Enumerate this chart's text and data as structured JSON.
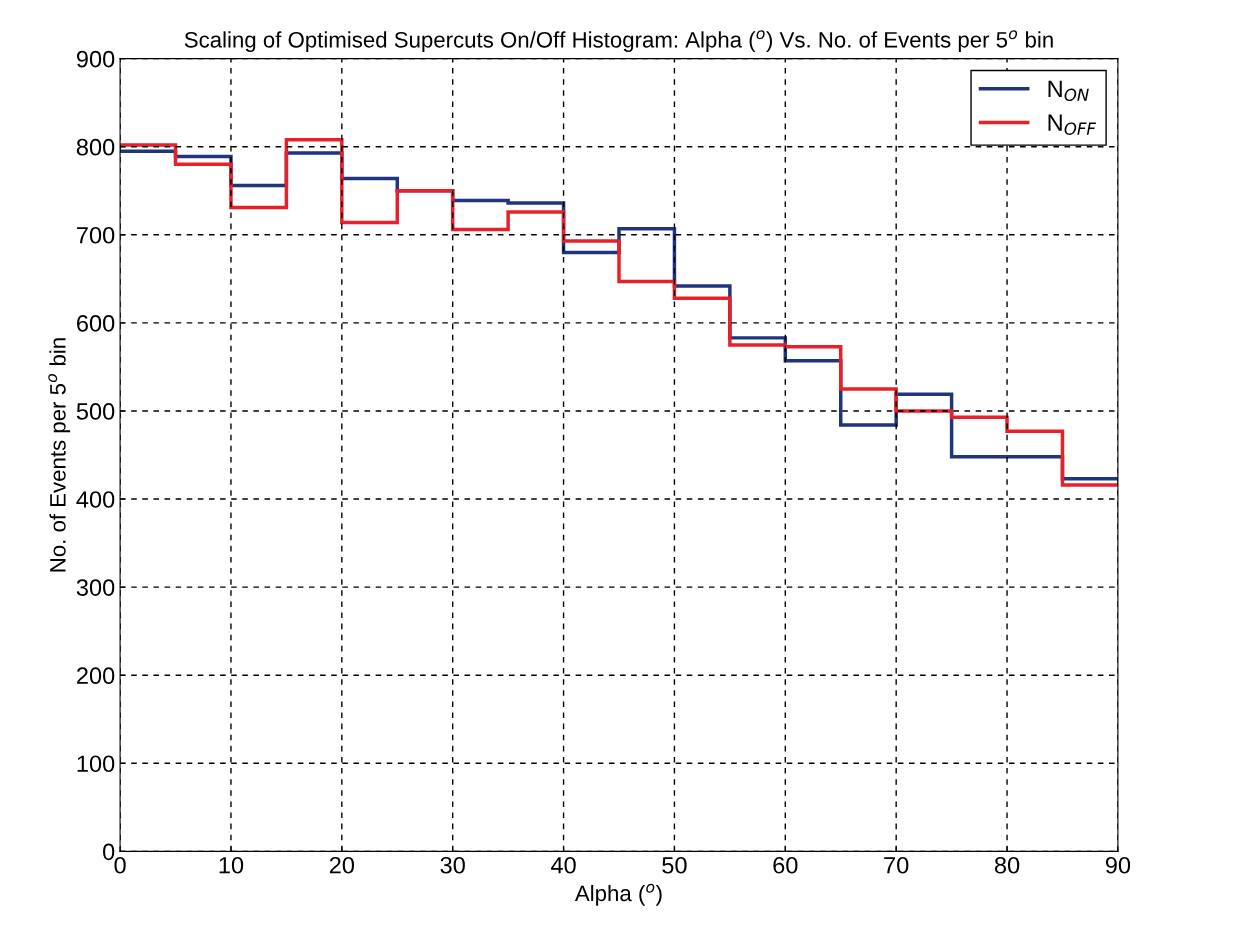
{
  "chart_data": {
    "type": "histogram",
    "title": "Scaling of Optimised Supercuts On/Off Histogram: Alpha ($^{o}$) Vs. No. of Events per 5$^{o}$ bin",
    "xlabel": "Alpha ($^{o}$)",
    "ylabel": "No. of Events per 5$^{o}$ bin",
    "bins": [
      0,
      5,
      10,
      15,
      20,
      25,
      30,
      35,
      40,
      45,
      50,
      55,
      60,
      65,
      70,
      75,
      80,
      85,
      90
    ],
    "series": [
      {
        "name": "N$_{ON}$",
        "color": "#1f3580",
        "values": [
          795,
          789,
          756,
          793,
          764,
          750,
          739,
          736,
          680,
          707,
          642,
          583,
          557,
          484,
          519,
          448,
          448,
          423
        ]
      },
      {
        "name": "N$_{OFF}$",
        "color": "#e8202a",
        "values": [
          802,
          780,
          731,
          808,
          714,
          750,
          706,
          726,
          693,
          647,
          628,
          575,
          573,
          525,
          500,
          493,
          477,
          416
        ]
      }
    ],
    "xlim": [
      0,
      90
    ],
    "xticks": [
      0,
      10,
      20,
      30,
      40,
      50,
      60,
      70,
      80,
      90
    ],
    "ylim": [
      0,
      900
    ],
    "yticks": [
      0,
      100,
      200,
      300,
      400,
      500,
      600,
      700,
      800,
      900
    ],
    "grid": true,
    "legend": "top right"
  }
}
